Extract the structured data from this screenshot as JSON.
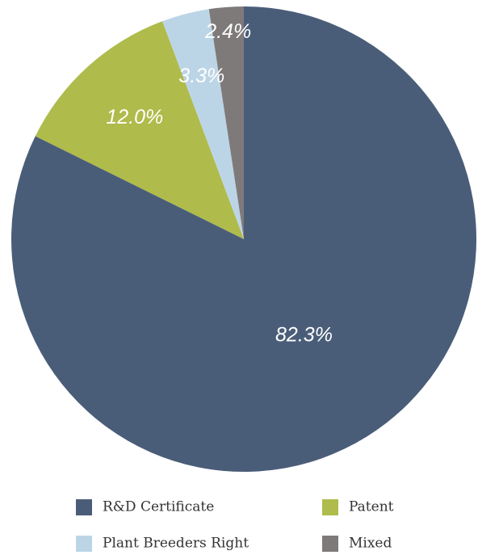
{
  "chart_data": {
    "type": "pie",
    "categories": [
      "R&D Certificate",
      "Patent",
      "Plant Breeders Right",
      "Mixed"
    ],
    "values": [
      82.3,
      12.0,
      3.3,
      2.4
    ],
    "value_labels": [
      "82.3%",
      "12.0%",
      "3.3%",
      "2.4%"
    ],
    "colors": [
      "#4a5d78",
      "#afbb4b",
      "#bcd5e6",
      "#7f7a7a"
    ],
    "legend": "bottom"
  }
}
